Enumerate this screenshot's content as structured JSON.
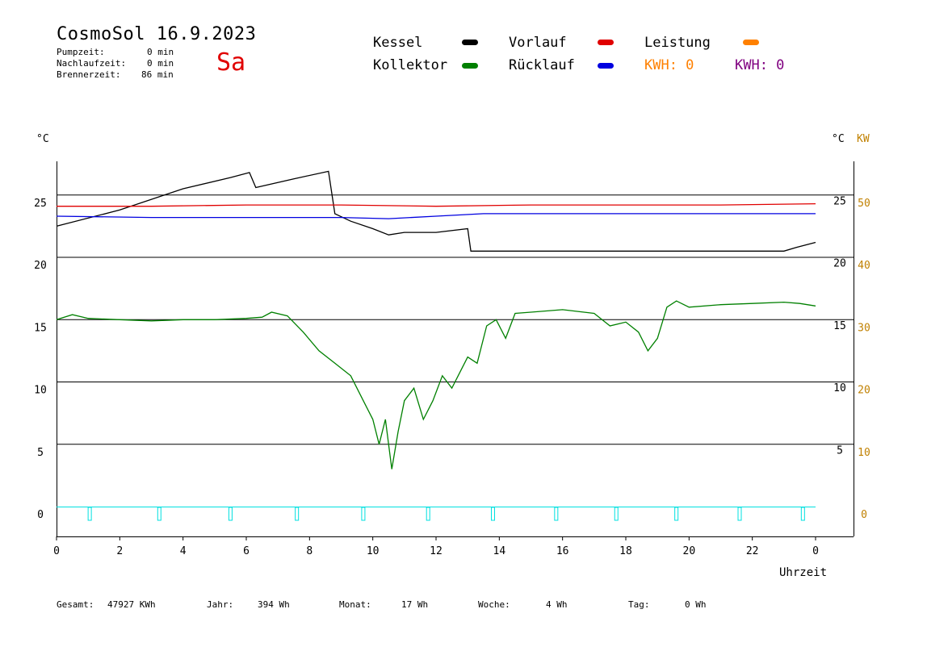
{
  "header": {
    "title": "CosmoSol 16.9.2023",
    "day": "Sa",
    "stats": [
      {
        "label": "Pumpzeit:",
        "value": "0 min"
      },
      {
        "label": "Nachlaufzeit:",
        "value": "0 min"
      },
      {
        "label": "Brennerzeit:",
        "value": "86 min"
      }
    ]
  },
  "legend": {
    "kessel": "Kessel",
    "kollektor": "Kollektor",
    "vorlauf": "Vorlauf",
    "ruecklauf": "Rücklauf",
    "leistung": "Leistung",
    "kwh1": "KWH: 0",
    "kwh2": "KWH: 0"
  },
  "axes": {
    "left_unit": "°C",
    "right_unit": "°C",
    "kw_unit": "KW",
    "xlabel": "Uhrzeit"
  },
  "footer": {
    "gesamt_label": "Gesamt:",
    "gesamt_value": "47927 KWh",
    "jahr_label": "Jahr:",
    "jahr_value": "394 Wh",
    "monat_label": "Monat:",
    "monat_value": "17 Wh",
    "woche_label": "Woche:",
    "woche_value": "4 Wh",
    "tag_label": "Tag:",
    "tag_value": "0 Wh"
  },
  "colors": {
    "kessel": "#000000",
    "kollektor": "#008000",
    "vorlauf": "#e00000",
    "ruecklauf": "#0000e0",
    "leistung": "#ff8000",
    "kwh2": "#800080",
    "pump": "#00e0e0"
  },
  "chart_data": {
    "type": "line",
    "xlabel": "Uhrzeit",
    "ylabel": "°C",
    "xlim": [
      0,
      24
    ],
    "ylim": [
      -2,
      27.5
    ],
    "x_ticks": [
      "0",
      "2",
      "4",
      "6",
      "8",
      "10",
      "12",
      "14",
      "16",
      "18",
      "20",
      "22",
      "0"
    ],
    "left_ticks": [
      {
        "label": "0",
        "value": 0
      },
      {
        "label": "5",
        "value": 5
      },
      {
        "label": "10",
        "value": 10
      },
      {
        "label": "15",
        "value": 15
      },
      {
        "label": "20",
        "value": 20
      },
      {
        "label": "25",
        "value": 25
      }
    ],
    "right_ticks": [
      {
        "label": "5",
        "value": 4.5
      },
      {
        "label": "10",
        "value": 9.5
      },
      {
        "label": "15",
        "value": 14.5
      },
      {
        "label": "20",
        "value": 19.5
      },
      {
        "label": "25",
        "value": 24.5
      }
    ],
    "kw_ticks": [
      {
        "label": "0",
        "value": 0
      },
      {
        "label": "10",
        "value": 5
      },
      {
        "label": "20",
        "value": 10
      },
      {
        "label": "30",
        "value": 15
      },
      {
        "label": "40",
        "value": 20
      },
      {
        "label": "50",
        "value": 25
      }
    ],
    "gridlines": [
      5,
      10,
      15,
      20,
      25
    ],
    "series": [
      {
        "name": "Kessel",
        "color": "#000000",
        "x": [
          0,
          2,
          4,
          5.5,
          6.1,
          6.3,
          7.5,
          8.6,
          8.8,
          9.3,
          10,
          10.5,
          11,
          12,
          13,
          13.1,
          17,
          20,
          23,
          23.4,
          24
        ],
        "y": [
          22.5,
          23.8,
          25.5,
          26.4,
          26.8,
          25.6,
          26.3,
          26.9,
          23.5,
          22.9,
          22.3,
          21.8,
          22.0,
          22.0,
          22.3,
          20.5,
          20.5,
          20.5,
          20.5,
          20.8,
          21.2
        ]
      },
      {
        "name": "Vorlauf",
        "color": "#e00000",
        "x": [
          0,
          3,
          6,
          9,
          12,
          15,
          18,
          21,
          24
        ],
        "y": [
          24.1,
          24.1,
          24.2,
          24.2,
          24.1,
          24.2,
          24.2,
          24.2,
          24.3
        ]
      },
      {
        "name": "Rücklauf",
        "color": "#0000e0",
        "x": [
          0,
          3,
          6,
          9,
          10.5,
          12,
          13.5,
          15,
          18,
          21,
          24
        ],
        "y": [
          23.3,
          23.2,
          23.2,
          23.2,
          23.1,
          23.3,
          23.5,
          23.5,
          23.5,
          23.5,
          23.5
        ]
      },
      {
        "name": "Kollektor",
        "color": "#008000",
        "x": [
          0,
          0.5,
          1,
          2,
          3,
          4,
          5,
          6,
          6.5,
          6.8,
          7.3,
          7.8,
          8.3,
          8.8,
          9.3,
          9.7,
          10.0,
          10.2,
          10.4,
          10.6,
          10.8,
          11.0,
          11.3,
          11.6,
          11.9,
          12.2,
          12.5,
          12.8,
          13.0,
          13.3,
          13.6,
          13.9,
          14.2,
          14.5,
          15,
          16,
          17,
          17.5,
          18,
          18.4,
          18.7,
          19.0,
          19.3,
          19.6,
          20,
          21,
          22,
          23,
          23.5,
          24
        ],
        "y": [
          15.0,
          15.4,
          15.1,
          15.0,
          14.9,
          15.0,
          15.0,
          15.1,
          15.2,
          15.6,
          15.3,
          14.0,
          12.5,
          11.5,
          10.5,
          8.5,
          7.0,
          5.0,
          7.0,
          3.0,
          6.0,
          8.5,
          9.5,
          7.0,
          8.5,
          10.5,
          9.5,
          11.0,
          12.0,
          11.5,
          14.5,
          15.0,
          13.5,
          15.5,
          15.6,
          15.8,
          15.5,
          14.5,
          14.8,
          14.0,
          12.5,
          13.5,
          16.0,
          16.5,
          16.0,
          16.2,
          16.3,
          16.4,
          16.3,
          16.1
        ]
      }
    ],
    "pump_markers_x": [
      1.05,
      3.25,
      5.5,
      7.6,
      9.7,
      11.75,
      13.8,
      15.8,
      17.7,
      19.6,
      21.6,
      23.6
    ]
  }
}
